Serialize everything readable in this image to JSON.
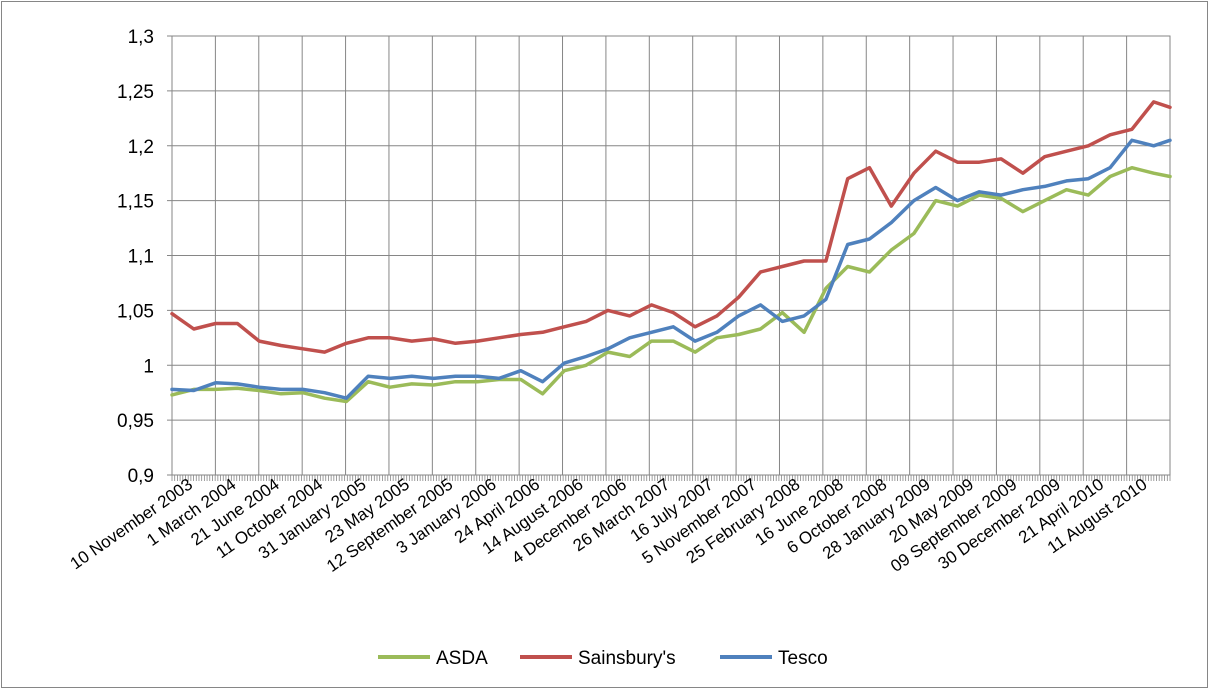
{
  "chart_data": {
    "type": "line",
    "title": "",
    "xlabel": "",
    "ylabel": "",
    "ylim": [
      0.9,
      1.3
    ],
    "yticks": [
      "0,9",
      "0,95",
      "1",
      "1,05",
      "1,1",
      "1,15",
      "1,2",
      "1,25",
      "1,3"
    ],
    "x_labels": [
      "10 November 2003",
      "1 March 2004",
      "21 June 2004",
      "11 October 2004",
      "31 January 2005",
      "23 May 2005",
      "12 September 2005",
      "3 January 2006",
      "24 April 2006",
      "14 August 2006",
      "4 December 2006",
      "26 March 2007",
      "16 July 2007",
      "5 November 2007",
      "25 February 2008",
      "16 June 2008",
      "6 October 2008",
      "28 January 2009",
      "20 May 2009",
      "09 September 2009",
      "30 December 2009",
      "21 April 2010",
      "11 August 2010"
    ],
    "x": [
      "2003-11-10",
      "2004-01-05",
      "2004-03-01",
      "2004-04-26",
      "2004-06-21",
      "2004-08-16",
      "2004-10-11",
      "2004-12-06",
      "2005-01-31",
      "2005-03-28",
      "2005-05-23",
      "2005-07-18",
      "2005-09-12",
      "2005-11-07",
      "2006-01-03",
      "2006-02-27",
      "2006-04-24",
      "2006-06-19",
      "2006-08-14",
      "2006-10-09",
      "2006-12-04",
      "2007-01-29",
      "2007-03-26",
      "2007-05-21",
      "2007-07-16",
      "2007-09-10",
      "2007-11-05",
      "2007-12-31",
      "2008-02-25",
      "2008-04-21",
      "2008-06-16",
      "2008-08-11",
      "2008-10-06",
      "2008-12-01",
      "2009-01-28",
      "2009-03-25",
      "2009-05-20",
      "2009-07-15",
      "2009-09-09",
      "2009-11-04",
      "2009-12-30",
      "2010-02-24",
      "2010-04-21",
      "2010-06-16",
      "2010-08-11",
      "2010-10-06",
      "2010-11-17"
    ],
    "series": [
      {
        "name": "ASDA",
        "color": "#9BBB59",
        "values": [
          0.973,
          0.978,
          0.978,
          0.979,
          0.977,
          0.974,
          0.975,
          0.97,
          0.967,
          0.985,
          0.98,
          0.983,
          0.982,
          0.985,
          0.985,
          0.987,
          0.987,
          0.974,
          0.995,
          1.0,
          1.012,
          1.008,
          1.022,
          1.022,
          1.012,
          1.025,
          1.028,
          1.033,
          1.048,
          1.03,
          1.07,
          1.09,
          1.085,
          1.105,
          1.12,
          1.15,
          1.145,
          1.155,
          1.152,
          1.14,
          1.15,
          1.16,
          1.155,
          1.172,
          1.18,
          1.175,
          1.172
        ]
      },
      {
        "name": "Sainsbury's",
        "color": "#C0504D",
        "values": [
          1.047,
          1.033,
          1.038,
          1.038,
          1.022,
          1.018,
          1.015,
          1.012,
          1.02,
          1.025,
          1.025,
          1.022,
          1.024,
          1.02,
          1.022,
          1.025,
          1.028,
          1.03,
          1.035,
          1.04,
          1.05,
          1.045,
          1.055,
          1.048,
          1.035,
          1.045,
          1.062,
          1.085,
          1.09,
          1.095,
          1.095,
          1.17,
          1.18,
          1.145,
          1.175,
          1.195,
          1.185,
          1.185,
          1.188,
          1.175,
          1.19,
          1.195,
          1.2,
          1.21,
          1.215,
          1.24,
          1.235
        ]
      },
      {
        "name": "Tesco",
        "color": "#4F81BD",
        "values": [
          0.978,
          0.977,
          0.984,
          0.983,
          0.98,
          0.978,
          0.978,
          0.975,
          0.97,
          0.99,
          0.988,
          0.99,
          0.988,
          0.99,
          0.99,
          0.988,
          0.995,
          0.985,
          1.002,
          1.008,
          1.015,
          1.025,
          1.03,
          1.035,
          1.022,
          1.03,
          1.045,
          1.055,
          1.04,
          1.045,
          1.06,
          1.11,
          1.115,
          1.13,
          1.15,
          1.162,
          1.15,
          1.158,
          1.155,
          1.16,
          1.163,
          1.168,
          1.17,
          1.18,
          1.205,
          1.2,
          1.205
        ]
      }
    ],
    "grid": {
      "horizontal": true,
      "vertical": true
    },
    "legend_position": "bottom"
  }
}
